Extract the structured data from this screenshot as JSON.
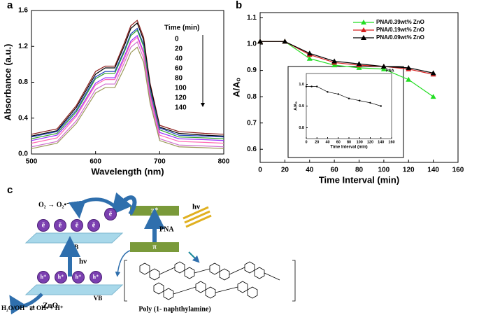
{
  "chart_data": [
    {
      "type": "line",
      "label": "a",
      "x_label": "Wavelength (nm)",
      "y_label": "Absorbance (a.u.)",
      "xlim": [
        500,
        800
      ],
      "ylim": [
        0,
        1.6
      ],
      "xticks": [
        500,
        600,
        700,
        800
      ],
      "yticks": [
        {
          "value": 0,
          "label": "0.0"
        },
        0.4,
        0.8,
        1.2,
        1.6
      ],
      "legend_title": "Time (min)",
      "x": [
        500,
        540,
        570,
        600,
        615,
        630,
        645,
        655,
        665,
        675,
        685,
        700,
        730,
        770,
        800
      ],
      "series": [
        {
          "name": "0",
          "color": "#8b1a1a",
          "values": [
            0.22,
            0.28,
            0.54,
            0.92,
            0.98,
            0.98,
            1.24,
            1.43,
            1.49,
            1.3,
            0.79,
            0.32,
            0.25,
            0.23,
            0.22
          ]
        },
        {
          "name": "20",
          "color": "#000000",
          "values": [
            0.2,
            0.26,
            0.52,
            0.89,
            0.96,
            0.96,
            1.21,
            1.4,
            1.46,
            1.27,
            0.77,
            0.3,
            0.23,
            0.21,
            0.2
          ]
        },
        {
          "name": "40",
          "color": "#1f3fbf",
          "values": [
            0.19,
            0.25,
            0.49,
            0.86,
            0.92,
            0.92,
            1.16,
            1.34,
            1.4,
            1.22,
            0.73,
            0.29,
            0.21,
            0.2,
            0.19
          ]
        },
        {
          "name": "60",
          "color": "#2ca02c",
          "values": [
            0.17,
            0.23,
            0.47,
            0.84,
            0.9,
            0.9,
            1.14,
            1.32,
            1.38,
            1.2,
            0.71,
            0.27,
            0.19,
            0.18,
            0.17
          ]
        },
        {
          "name": "80",
          "color": "#9b30ff",
          "values": [
            0.15,
            0.21,
            0.44,
            0.79,
            0.85,
            0.85,
            1.09,
            1.26,
            1.32,
            1.14,
            0.68,
            0.24,
            0.17,
            0.16,
            0.15
          ]
        },
        {
          "name": "100",
          "color": "#ff69b4",
          "values": [
            0.12,
            0.18,
            0.42,
            0.77,
            0.83,
            0.83,
            1.06,
            1.24,
            1.3,
            1.12,
            0.65,
            0.21,
            0.14,
            0.13,
            0.12
          ]
        },
        {
          "name": "120",
          "color": "#d070d0",
          "values": [
            0.08,
            0.14,
            0.37,
            0.72,
            0.78,
            0.78,
            1.02,
            1.19,
            1.25,
            1.07,
            0.61,
            0.17,
            0.1,
            0.09,
            0.08
          ]
        },
        {
          "name": "140",
          "color": "#9c9a5a",
          "values": [
            0.06,
            0.12,
            0.34,
            0.68,
            0.74,
            0.74,
            0.96,
            1.13,
            1.19,
            1.02,
            0.57,
            0.15,
            0.08,
            0.07,
            0.06
          ]
        }
      ]
    },
    {
      "type": "line",
      "label": "b",
      "x_label": "Time Interval (min)",
      "y_label": "A/Aₒ",
      "marker": "triangle",
      "xlim": [
        0,
        160
      ],
      "ylim": [
        0.55,
        1.12
      ],
      "xticks": [
        0,
        20,
        40,
        60,
        80,
        100,
        120,
        140,
        160
      ],
      "yticks": [
        0.6,
        0.7,
        0.8,
        0.9,
        {
          "value": 1,
          "label": "1.0"
        },
        1.1
      ],
      "x": [
        0,
        20,
        40,
        60,
        80,
        100,
        120,
        140
      ],
      "series": [
        {
          "name": "PNA/0.39wt% ZnO",
          "color": "#22dd22",
          "values": [
            1.01,
            1.01,
            0.945,
            0.92,
            0.91,
            0.905,
            0.865,
            0.8
          ]
        },
        {
          "name": "PNA/0.19wt% ZnO",
          "color": "#d62020",
          "values": [
            1.01,
            1.01,
            0.96,
            0.93,
            0.92,
            0.915,
            0.905,
            0.885
          ]
        },
        {
          "name": "PNA/0.09wt% ZnO",
          "color": "#000000",
          "values": [
            1.01,
            1.01,
            0.965,
            0.935,
            0.925,
            0.915,
            0.91,
            0.89
          ]
        }
      ]
    },
    {
      "type": "line",
      "x_label": "Time Interval (min)",
      "y_label": "A/Aₒ",
      "marker": "circle",
      "xlim": [
        0,
        160
      ],
      "ylim": [
        0.75,
        1.05
      ],
      "xticks": [
        0,
        20,
        40,
        60,
        80,
        100,
        120,
        140,
        160
      ],
      "yticks": [
        0.8,
        0.9,
        {
          "value": 1,
          "label": "1.0"
        }
      ],
      "x": [
        0,
        10,
        20,
        40,
        60,
        80,
        100,
        120,
        140
      ],
      "series": [
        {
          "name": "PNA",
          "color": "#000000",
          "values": [
            0.99,
            0.99,
            0.99,
            0.965,
            0.955,
            0.935,
            0.925,
            0.915,
            0.9
          ]
        }
      ]
    }
  ],
  "diagram": {
    "label": "c",
    "o2": "O₂ → O₂•⁻",
    "electrons": [
      "ē",
      "ē",
      "ē",
      "ē",
      "ē"
    ],
    "cb": "CB",
    "hv_zno": "hν",
    "holes": [
      "h⁺",
      "h⁺",
      "h⁺",
      "h⁺"
    ],
    "vb": "VB",
    "zno": "ZnO",
    "water": "H₂O/OH⁻ ⇄ OH• + H⁺",
    "pi_star": "π*",
    "pi": "π",
    "pna": "PNA",
    "hv_pna": "hν",
    "polymer": "Poly (1- naphthylamine)"
  }
}
